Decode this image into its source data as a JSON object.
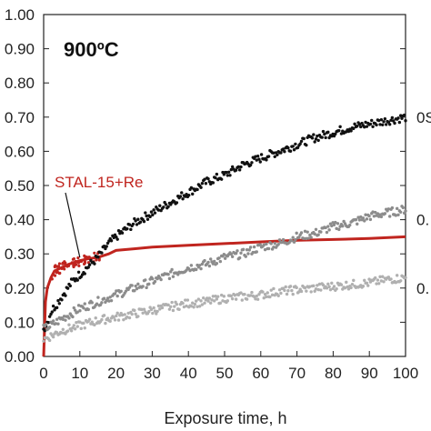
{
  "chart_data": {
    "type": "scatter",
    "title": "900ºC",
    "xlabel": "Exposure time, h",
    "ylabel": "",
    "xlim": [
      0,
      100
    ],
    "ylim": [
      0,
      1.0
    ],
    "x_ticks": [
      "0",
      "10",
      "20",
      "30",
      "40",
      "50",
      "60",
      "70",
      "80",
      "90",
      "100"
    ],
    "y_ticks": [
      "0.00",
      "0.10",
      "0.20",
      "0.30",
      "0.40",
      "0.50",
      "0.60",
      "0.70",
      "0.80",
      "0.90",
      "1.00"
    ],
    "grid": false,
    "annotation": "STAL-15+Re",
    "right_labels": [
      "0S",
      "0.",
      "0."
    ],
    "series": [
      {
        "name": "STAL-15+Re",
        "color": "#c0251f",
        "style": "line",
        "x": [
          0,
          0.5,
          1,
          2,
          3,
          5,
          7,
          10,
          12,
          15,
          18,
          20,
          25,
          30,
          40,
          50,
          60,
          70,
          80,
          90,
          100
        ],
        "y": [
          0,
          0.16,
          0.2,
          0.23,
          0.25,
          0.26,
          0.27,
          0.28,
          0.285,
          0.29,
          0.3,
          0.31,
          0.315,
          0.32,
          0.325,
          0.33,
          0.335,
          0.34,
          0.342,
          0.345,
          0.35
        ]
      },
      {
        "color": "#111111",
        "style": "points",
        "x": [
          0,
          1,
          2,
          4,
          6,
          8,
          10,
          12,
          15,
          18,
          20,
          25,
          30,
          35,
          40,
          45,
          50,
          55,
          60,
          65,
          70,
          75,
          80,
          85,
          90,
          95,
          100
        ],
        "y": [
          0.08,
          0.1,
          0.13,
          0.16,
          0.19,
          0.22,
          0.24,
          0.26,
          0.29,
          0.33,
          0.35,
          0.39,
          0.42,
          0.45,
          0.48,
          0.51,
          0.53,
          0.56,
          0.58,
          0.6,
          0.62,
          0.64,
          0.655,
          0.67,
          0.68,
          0.69,
          0.7
        ]
      },
      {
        "color": "#8c8c8c",
        "style": "points",
        "x": [
          0,
          2,
          5,
          10,
          15,
          20,
          25,
          30,
          35,
          40,
          45,
          50,
          55,
          60,
          65,
          70,
          75,
          80,
          85,
          90,
          95,
          100
        ],
        "y": [
          0.08,
          0.09,
          0.11,
          0.14,
          0.16,
          0.18,
          0.2,
          0.22,
          0.24,
          0.26,
          0.27,
          0.29,
          0.3,
          0.32,
          0.33,
          0.35,
          0.36,
          0.38,
          0.39,
          0.41,
          0.42,
          0.43
        ]
      },
      {
        "color": "#b0b0b0",
        "style": "points",
        "x": [
          0,
          2,
          5,
          10,
          15,
          20,
          25,
          30,
          35,
          40,
          45,
          50,
          55,
          60,
          65,
          70,
          75,
          80,
          85,
          90,
          95,
          100
        ],
        "y": [
          0.05,
          0.06,
          0.075,
          0.09,
          0.105,
          0.115,
          0.125,
          0.135,
          0.145,
          0.155,
          0.16,
          0.17,
          0.175,
          0.18,
          0.19,
          0.195,
          0.2,
          0.205,
          0.21,
          0.215,
          0.225,
          0.23
        ]
      }
    ]
  }
}
